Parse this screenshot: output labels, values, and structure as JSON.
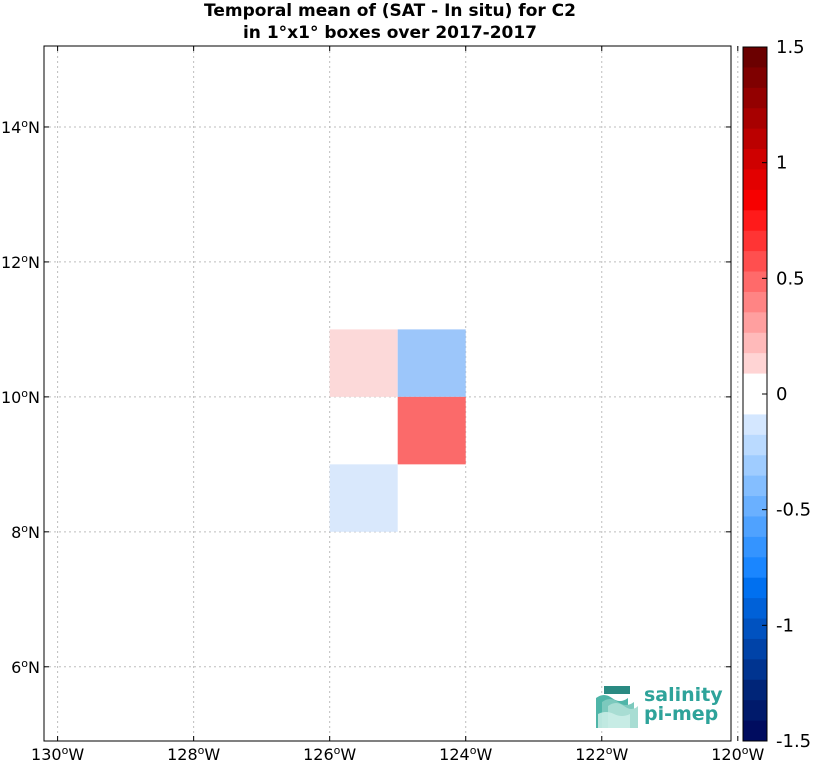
{
  "chart_data": {
    "type": "heatmap",
    "title": "Temporal mean of (SAT - In situ) for C2",
    "subtitle": "in 1°x1° boxes over 2017-2017",
    "x_ticks": [
      {
        "value": -130,
        "label": "130",
        "suffix": "W"
      },
      {
        "value": -128,
        "label": "128",
        "suffix": "W"
      },
      {
        "value": -126,
        "label": "126",
        "suffix": "W"
      },
      {
        "value": -124,
        "label": "124",
        "suffix": "W"
      },
      {
        "value": -122,
        "label": "122",
        "suffix": "W"
      },
      {
        "value": -120,
        "label": "120",
        "suffix": "W"
      }
    ],
    "y_ticks": [
      {
        "value": 6,
        "label": "6",
        "suffix": "N"
      },
      {
        "value": 8,
        "label": "8",
        "suffix": "N"
      },
      {
        "value": 10,
        "label": "10",
        "suffix": "N"
      },
      {
        "value": 12,
        "label": "12",
        "suffix": "N"
      },
      {
        "value": 14,
        "label": "14",
        "suffix": "N"
      }
    ],
    "xlim": [
      -130.2,
      -120.1
    ],
    "ylim": [
      4.9,
      15.2
    ],
    "grid": true,
    "cells": [
      {
        "lon": -126,
        "lat": 10,
        "value": 0.15,
        "color": "#fcd9d9"
      },
      {
        "lon": -125,
        "lat": 10,
        "value": -0.35,
        "color": "#9cc6fa"
      },
      {
        "lon": -125,
        "lat": 9,
        "value": 0.65,
        "color": "#fb6a6a"
      },
      {
        "lon": -126,
        "lat": 8,
        "value": -0.15,
        "color": "#d9e8fc"
      }
    ],
    "colorbar": {
      "min": -1.5,
      "max": 1.5,
      "ticks": [
        {
          "value": 1.5,
          "label": "1.5"
        },
        {
          "value": 1.0,
          "label": "1"
        },
        {
          "value": 0.5,
          "label": "0.5"
        },
        {
          "value": 0.0,
          "label": "0"
        },
        {
          "value": -0.5,
          "label": "-0.5"
        },
        {
          "value": -1.0,
          "label": "-1"
        },
        {
          "value": -1.5,
          "label": "-1.5"
        }
      ],
      "colors_top_to_bottom": [
        "#6b0000",
        "#7f0000",
        "#930000",
        "#a70000",
        "#bb0000",
        "#cf0000",
        "#e30000",
        "#f70000",
        "#ff1a1a",
        "#ff3434",
        "#ff4f4f",
        "#ff6a6a",
        "#ff8484",
        "#ff9f9f",
        "#ffbaba",
        "#ffd4d4",
        "#ffffff",
        "#ffffff",
        "#d4e7ff",
        "#badaff",
        "#9fccff",
        "#84beff",
        "#6ab0ff",
        "#4fa2ff",
        "#3494ff",
        "#1a86ff",
        "#0070f0",
        "#0061d8",
        "#0052c0",
        "#0043a8",
        "#003490",
        "#002578",
        "#001a6b",
        "#000c5f"
      ]
    }
  },
  "logo": {
    "line1": "salinity",
    "line2": "pi-mep"
  }
}
